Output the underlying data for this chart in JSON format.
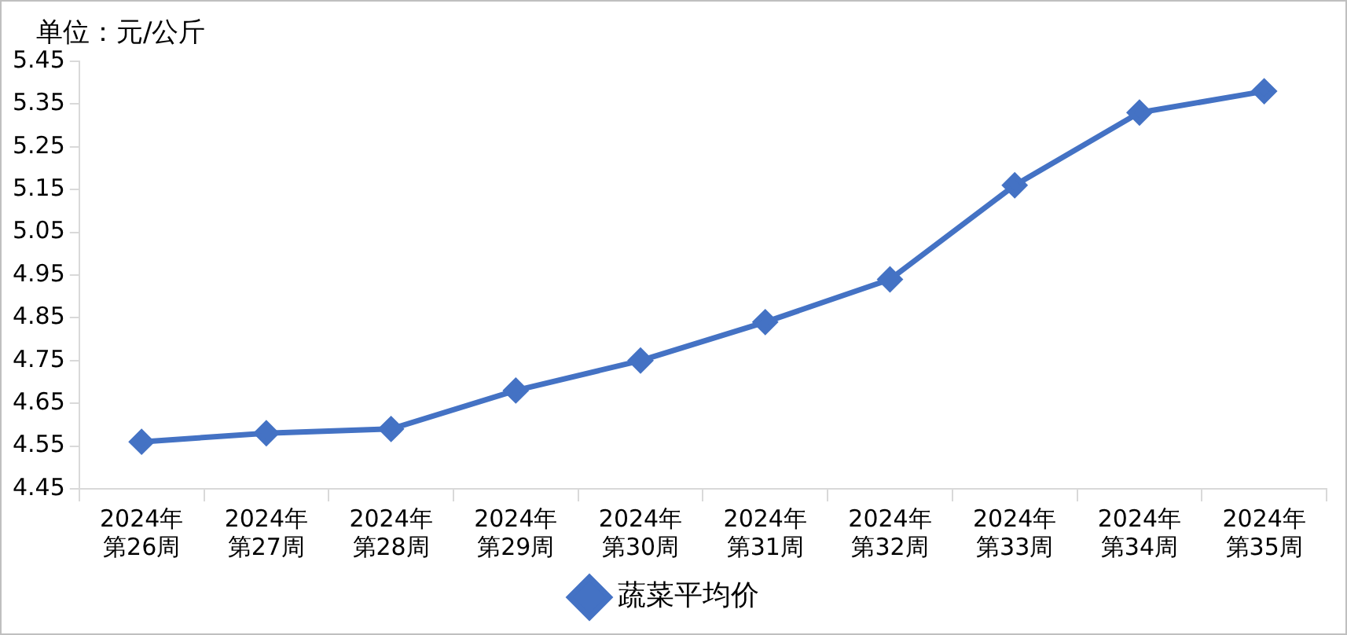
{
  "chart_data": {
    "type": "line",
    "categories": [
      "2024年第26周",
      "2024年第27周",
      "2024年第28周",
      "2024年第29周",
      "2024年第30周",
      "2024年第31周",
      "2024年第32周",
      "2024年第33周",
      "2024年第34周",
      "2024年第35周"
    ],
    "series": [
      {
        "name": "蔬菜平均价",
        "color": "#4472c4",
        "values": [
          4.56,
          4.58,
          4.59,
          4.68,
          4.75,
          4.84,
          4.94,
          5.16,
          5.33,
          5.38
        ]
      }
    ],
    "ylim": [
      4.45,
      5.45
    ],
    "yticks": [
      4.45,
      4.55,
      4.65,
      4.75,
      4.85,
      4.95,
      5.05,
      5.15,
      5.25,
      5.35,
      5.45
    ],
    "annotations": [
      "单位：元/公斤"
    ],
    "grid": false,
    "legend": "bottom",
    "marker": "diamond",
    "line_style": "solid"
  }
}
